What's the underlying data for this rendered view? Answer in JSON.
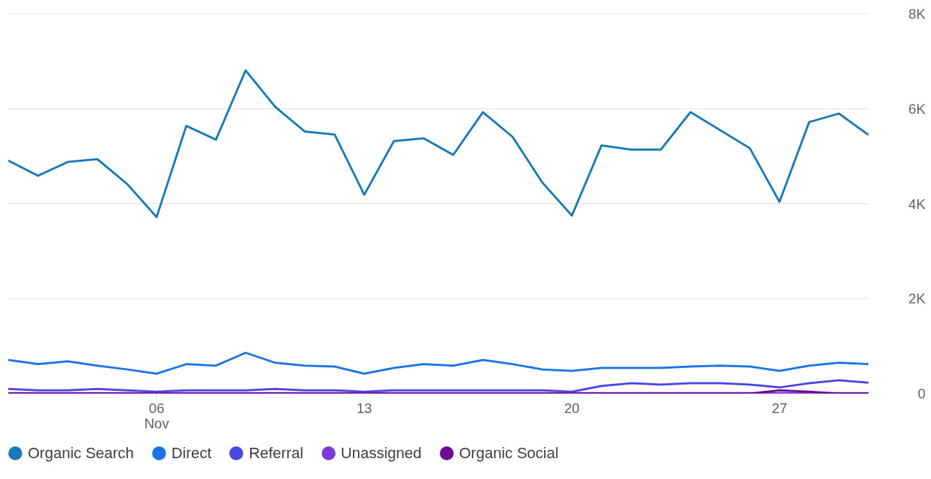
{
  "chart_data": {
    "type": "line",
    "x": [
      "--11-01",
      "--11-02",
      "--11-03",
      "--11-04",
      "--11-05",
      "--11-06",
      "--11-07",
      "--11-08",
      "--11-09",
      "--11-10",
      "--11-11",
      "--11-12",
      "--11-13",
      "--11-14",
      "--11-15",
      "--11-16",
      "--11-17",
      "--11-18",
      "--11-19",
      "--11-20",
      "--11-21",
      "--11-22",
      "--11-23",
      "--11-24",
      "--11-25",
      "--11-26",
      "--11-27",
      "--11-28",
      "--11-29",
      "--11-30"
    ],
    "series": [
      {
        "name": "Organic Search",
        "color": "#1679b8",
        "values": [
          4910,
          4590,
          4880,
          4940,
          4420,
          3720,
          5640,
          5350,
          6810,
          6040,
          5520,
          5460,
          4190,
          5320,
          5380,
          5030,
          5930,
          5410,
          4450,
          3750,
          5230,
          5140,
          5140,
          5930,
          5550,
          5170,
          4040,
          5720,
          5900,
          5450
        ]
      },
      {
        "name": "Direct",
        "color": "#1a73e8",
        "values": [
          710,
          620,
          680,
          590,
          510,
          420,
          620,
          590,
          860,
          650,
          590,
          570,
          420,
          540,
          620,
          590,
          710,
          620,
          510,
          480,
          540,
          540,
          540,
          570,
          590,
          570,
          480,
          590,
          650,
          620
        ]
      },
      {
        "name": "Referral",
        "color": "#4b44e6",
        "values": [
          100,
          70,
          70,
          100,
          70,
          40,
          70,
          70,
          70,
          100,
          70,
          70,
          40,
          70,
          70,
          70,
          70,
          70,
          70,
          40,
          160,
          220,
          190,
          220,
          220,
          190,
          130,
          220,
          280,
          230
        ]
      },
      {
        "name": "Unassigned",
        "color": "#7b3ad6",
        "values": [
          10,
          10,
          10,
          10,
          10,
          10,
          10,
          10,
          10,
          10,
          10,
          10,
          10,
          10,
          10,
          10,
          10,
          10,
          10,
          10,
          10,
          10,
          10,
          10,
          10,
          10,
          10,
          10,
          10,
          10
        ]
      },
      {
        "name": "Organic Social",
        "color": "#6a0d91",
        "values": [
          0,
          0,
          0,
          0,
          0,
          0,
          0,
          0,
          0,
          0,
          0,
          0,
          0,
          0,
          0,
          0,
          0,
          0,
          0,
          0,
          0,
          0,
          0,
          0,
          0,
          0,
          70,
          40,
          0,
          0
        ]
      }
    ],
    "xlim": [
      "--11-01",
      "--11-30"
    ],
    "xticks": [
      {
        "value": "--11-06",
        "label": "06\nNov"
      },
      {
        "value": "--11-13",
        "label": "13"
      },
      {
        "value": "--11-20",
        "label": "20"
      },
      {
        "value": "--11-27",
        "label": "27"
      }
    ],
    "ylim": [
      0,
      8000
    ],
    "yticks": [
      {
        "value": 0,
        "label": "0"
      },
      {
        "value": 2000,
        "label": "2K"
      },
      {
        "value": 4000,
        "label": "4K"
      },
      {
        "value": 6000,
        "label": "6K"
      },
      {
        "value": 8000,
        "label": "8K"
      }
    ],
    "grid": "y",
    "legend": "bottom left",
    "marker": "none",
    "line_style": "solid"
  }
}
